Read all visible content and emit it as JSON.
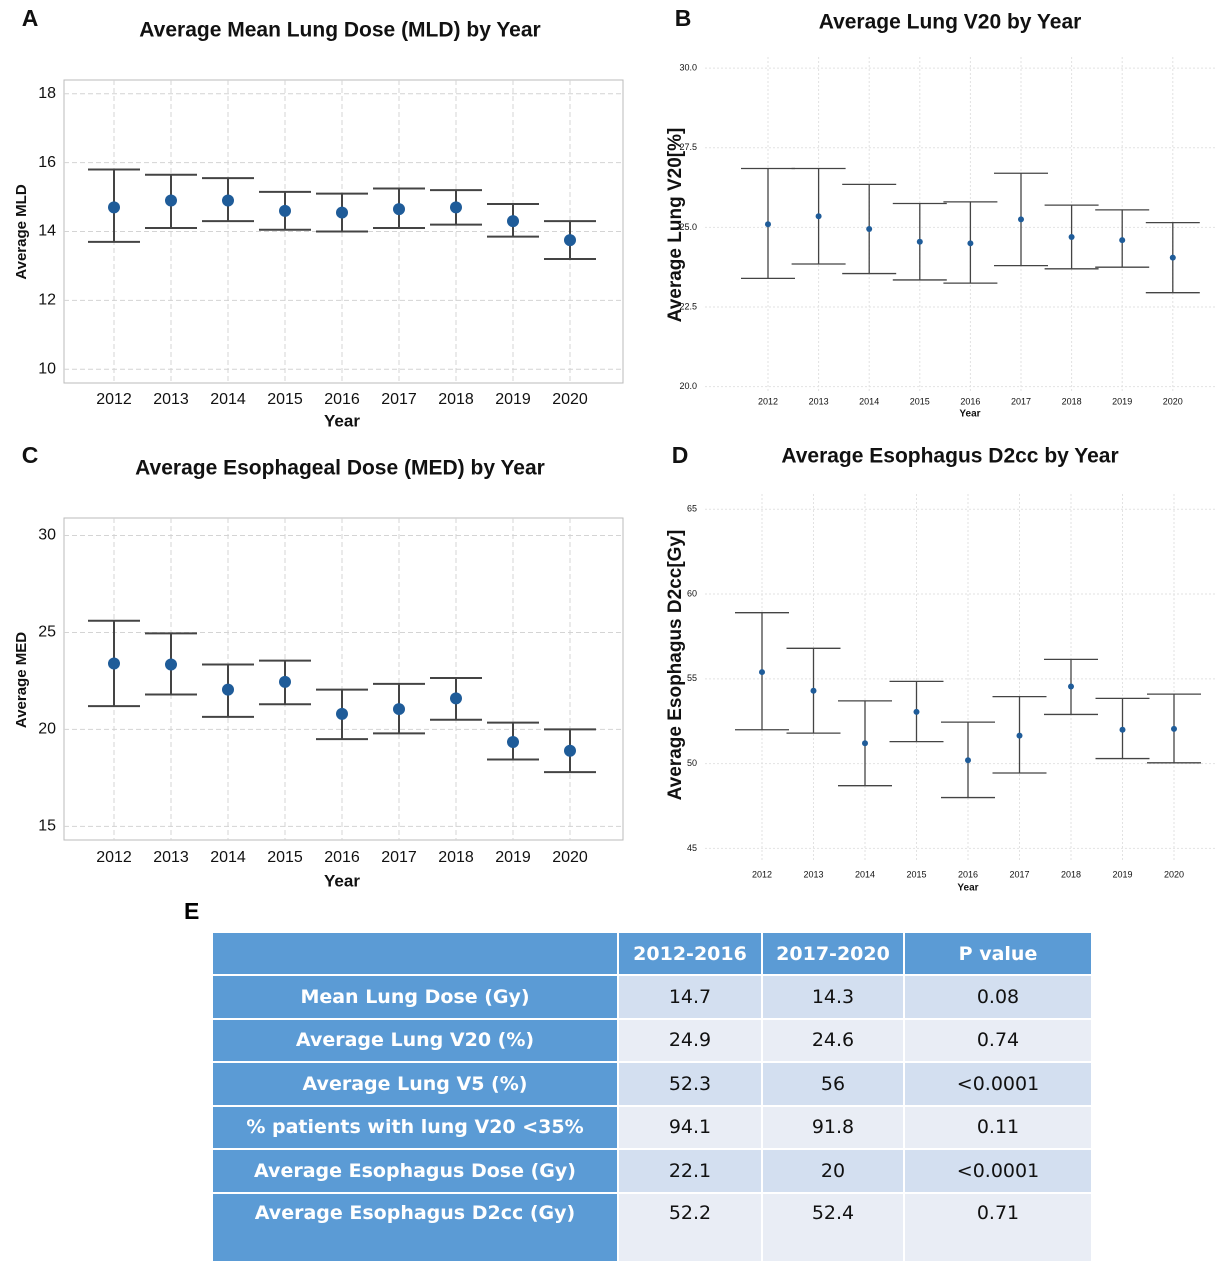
{
  "chart_data": [
    {
      "type": "errorbar",
      "label": "A",
      "title": "Average Mean Lung Dose (MLD) by Year",
      "y_label": "Average MLD",
      "x_label": "Year",
      "color": "#1f5c99",
      "categories": [
        "2012",
        "2013",
        "2014",
        "2015",
        "2016",
        "2017",
        "2018",
        "2019",
        "2020"
      ],
      "values": [
        14.7,
        14.9,
        14.9,
        14.6,
        14.55,
        14.65,
        14.7,
        14.3,
        13.75
      ],
      "lower": [
        13.7,
        14.1,
        14.3,
        14.05,
        14.0,
        14.1,
        14.2,
        13.85,
        13.2
      ],
      "upper": [
        15.8,
        15.65,
        15.55,
        15.15,
        15.1,
        15.25,
        15.2,
        14.8,
        14.3
      ],
      "ylim": [
        9.6,
        18.4
      ],
      "yticks": [
        10,
        12,
        14,
        16,
        18
      ],
      "grid": true
    },
    {
      "type": "errorbar",
      "label": "B",
      "title": "Average Lung V20 by Year",
      "y_label": "Average Lung V20[%]",
      "x_label": "Year",
      "color": "#1f5c99",
      "categories": [
        "2012",
        "2013",
        "2014",
        "2015",
        "2016",
        "2017",
        "2018",
        "2019",
        "2020"
      ],
      "values": [
        25.1,
        25.35,
        24.95,
        24.55,
        24.5,
        25.25,
        24.7,
        24.6,
        24.05
      ],
      "lower": [
        23.4,
        23.85,
        23.55,
        23.35,
        23.25,
        23.8,
        23.7,
        23.75,
        22.95
      ],
      "upper": [
        26.85,
        26.85,
        26.35,
        25.75,
        25.8,
        26.7,
        25.7,
        25.55,
        25.15
      ],
      "ylim": [
        19.8,
        30.35
      ],
      "yticks": [
        {
          "value": 20,
          "label": "20.0"
        },
        22.5,
        {
          "value": 25,
          "label": "25.0"
        },
        27.5,
        {
          "value": 30,
          "label": "30.0"
        }
      ],
      "grid": true
    },
    {
      "type": "errorbar",
      "label": "C",
      "title": "Average Esophageal Dose (MED) by Year",
      "y_label": "Average MED",
      "x_label": "Year",
      "color": "#1f5c99",
      "categories": [
        "2012",
        "2013",
        "2014",
        "2015",
        "2016",
        "2017",
        "2018",
        "2019",
        "2020"
      ],
      "values": [
        23.4,
        23.35,
        22.05,
        22.45,
        20.8,
        21.05,
        21.6,
        19.35,
        18.9
      ],
      "lower": [
        21.2,
        21.8,
        20.65,
        21.3,
        19.5,
        19.8,
        20.5,
        18.45,
        17.8
      ],
      "upper": [
        25.6,
        24.95,
        23.35,
        23.55,
        22.05,
        22.35,
        22.65,
        20.35,
        20.0
      ],
      "ylim": [
        14.3,
        30.9
      ],
      "yticks": [
        15,
        20,
        25,
        30
      ],
      "grid": true
    },
    {
      "type": "errorbar",
      "label": "D",
      "title": "Average Esophagus D2cc by Year",
      "y_label": "Average Esophagus D2cc[Gy]",
      "x_label": "Year",
      "color": "#1f5c99",
      "categories": [
        "2012",
        "2013",
        "2014",
        "2015",
        "2016",
        "2017",
        "2018",
        "2019",
        "2020"
      ],
      "values": [
        55.4,
        54.3,
        51.2,
        53.05,
        50.2,
        51.65,
        54.55,
        52.0,
        52.05
      ],
      "lower": [
        52.0,
        51.8,
        48.7,
        51.3,
        48.0,
        49.45,
        52.9,
        50.3,
        50.05
      ],
      "upper": [
        58.9,
        56.8,
        53.7,
        54.85,
        52.45,
        53.95,
        56.15,
        53.85,
        54.1
      ],
      "ylim": [
        44.2,
        65.9
      ],
      "yticks": [
        45,
        50,
        55,
        60,
        65
      ],
      "grid": true
    }
  ],
  "table": {
    "label": "E",
    "columns": [
      "2012-2016",
      "2017-2020",
      "P value"
    ],
    "rows": [
      [
        "Mean Lung Dose (Gy)",
        "14.7",
        "14.3",
        "0.08"
      ],
      [
        "Average Lung V20 (%)",
        "24.9",
        "24.6",
        "0.74"
      ],
      [
        "Average Lung V5 (%)",
        "52.3",
        "56",
        "<0.0001"
      ],
      [
        "% patients with lung V20 <35%",
        "94.1",
        "91.8",
        "0.11"
      ],
      [
        "Average Esophagus Dose (Gy)",
        "22.1",
        "20",
        "<0.0001"
      ],
      [
        "Average Esophagus D2cc (Gy)",
        "52.2",
        "52.4",
        "0.71"
      ]
    ]
  }
}
